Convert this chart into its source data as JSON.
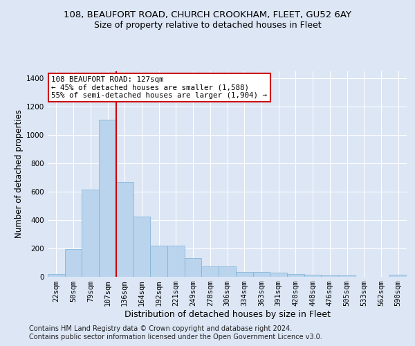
{
  "title_line1": "108, BEAUFORT ROAD, CHURCH CROOKHAM, FLEET, GU52 6AY",
  "title_line2": "Size of property relative to detached houses in Fleet",
  "xlabel": "Distribution of detached houses by size in Fleet",
  "ylabel": "Number of detached properties",
  "bin_labels": [
    "22sqm",
    "50sqm",
    "79sqm",
    "107sqm",
    "136sqm",
    "164sqm",
    "192sqm",
    "221sqm",
    "249sqm",
    "278sqm",
    "306sqm",
    "334sqm",
    "363sqm",
    "391sqm",
    "420sqm",
    "448sqm",
    "476sqm",
    "505sqm",
    "533sqm",
    "562sqm",
    "590sqm"
  ],
  "bar_heights": [
    20,
    195,
    615,
    1105,
    670,
    425,
    218,
    218,
    130,
    72,
    72,
    35,
    35,
    30,
    20,
    15,
    10,
    10,
    0,
    0,
    13
  ],
  "bar_color": "#bad4ee",
  "bar_edge_color": "#7aafd4",
  "vline_x": 3.5,
  "vline_color": "#cc0000",
  "annotation_text": "108 BEAUFORT ROAD: 127sqm\n← 45% of detached houses are smaller (1,588)\n55% of semi-detached houses are larger (1,904) →",
  "annotation_box_color": "#ffffff",
  "annotation_box_edge_color": "#cc0000",
  "ylim": [
    0,
    1450
  ],
  "yticks": [
    0,
    200,
    400,
    600,
    800,
    1000,
    1200,
    1400
  ],
  "footnote1": "Contains HM Land Registry data © Crown copyright and database right 2024.",
  "footnote2": "Contains public sector information licensed under the Open Government Licence v3.0.",
  "bg_color": "#dce6f5",
  "plot_bg_color": "#dce6f5",
  "grid_color": "#ffffff",
  "title_fontsize": 9.5,
  "subtitle_fontsize": 9,
  "xlabel_fontsize": 9,
  "ylabel_fontsize": 8.5,
  "tick_fontsize": 7.5,
  "footnote_fontsize": 7
}
